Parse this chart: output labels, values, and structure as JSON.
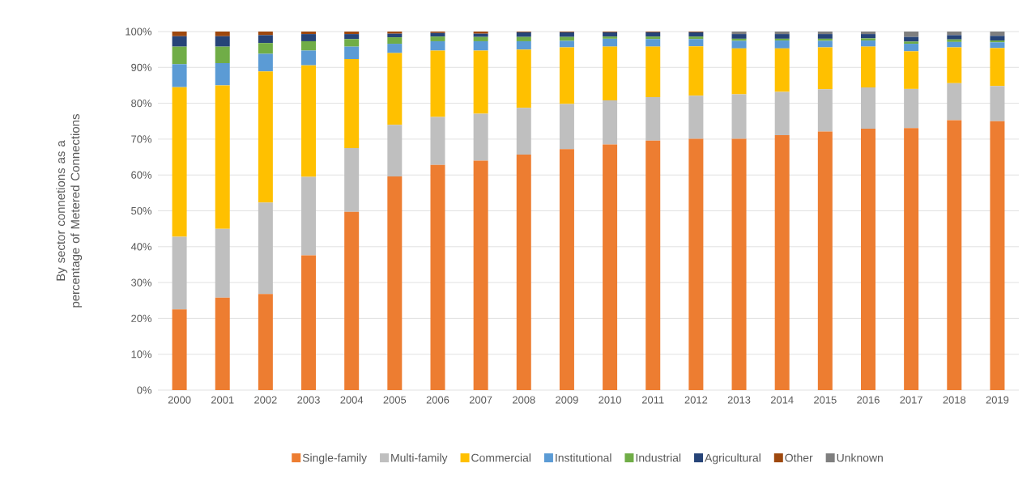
{
  "chart_data": {
    "type": "bar",
    "stacked": true,
    "ylabel": "By sector connetions as a percentage of Metered Connections",
    "categories": [
      "2000",
      "2001",
      "2002",
      "2003",
      "2004",
      "2005",
      "2006",
      "2007",
      "2008",
      "2009",
      "2010",
      "2011",
      "2012",
      "2013",
      "2014",
      "2015",
      "2016",
      "2017",
      "2018",
      "2019"
    ],
    "series": [
      {
        "name": "Single-family",
        "color": "#ed7d31",
        "values": [
          22.5,
          25.8,
          26.8,
          37.6,
          49.7,
          59.6,
          62.8,
          64.0,
          65.7,
          67.2,
          68.5,
          69.6,
          70.1,
          70.1,
          71.1,
          72.1,
          72.9,
          73.1,
          75.3,
          75.0
        ]
      },
      {
        "name": "Multi-family",
        "color": "#bfbfbf",
        "values": [
          20.3,
          19.2,
          25.5,
          21.9,
          17.8,
          14.4,
          13.4,
          13.1,
          13.0,
          12.6,
          12.3,
          12.1,
          12.0,
          12.4,
          12.1,
          11.8,
          11.5,
          10.9,
          10.3,
          9.8
        ]
      },
      {
        "name": "Commercial",
        "color": "#ffc000",
        "values": [
          41.7,
          40.0,
          36.6,
          31.1,
          24.8,
          20.0,
          18.5,
          17.6,
          16.3,
          15.8,
          15.0,
          14.1,
          13.8,
          12.8,
          12.1,
          11.7,
          11.4,
          10.5,
          10.0,
          10.6
        ]
      },
      {
        "name": "Institutional",
        "color": "#5b9bd5",
        "values": [
          6.4,
          6.2,
          4.9,
          4.1,
          3.5,
          2.6,
          2.6,
          2.6,
          2.3,
          1.8,
          2.2,
          2.1,
          2.0,
          2.1,
          2.2,
          1.8,
          1.7,
          2.1,
          1.5,
          1.6
        ]
      },
      {
        "name": "Industrial",
        "color": "#70ad47",
        "values": [
          4.9,
          4.6,
          3.0,
          2.6,
          2.1,
          1.8,
          1.3,
          1.2,
          1.2,
          1.1,
          0.6,
          0.7,
          0.7,
          0.6,
          0.5,
          0.6,
          0.6,
          0.6,
          0.7,
          0.5
        ]
      },
      {
        "name": "Agricultural",
        "color": "#264478",
        "values": [
          2.9,
          2.9,
          2.2,
          2.0,
          1.4,
          1.0,
          1.0,
          0.9,
          1.3,
          1.3,
          1.2,
          1.2,
          1.2,
          1.3,
          1.3,
          1.3,
          1.2,
          1.3,
          1.2,
          1.3
        ]
      },
      {
        "name": "Other",
        "color": "#9e480e",
        "values": [
          1.3,
          1.3,
          1.0,
          0.7,
          0.7,
          0.6,
          0.4,
          0.6,
          0.2,
          0.2,
          0.2,
          0.2,
          0.2,
          null,
          null,
          null,
          null,
          null,
          null,
          null
        ]
      },
      {
        "name": "Unknown",
        "color": "#7f7f7f",
        "values": [
          null,
          null,
          null,
          null,
          null,
          null,
          null,
          null,
          null,
          null,
          null,
          null,
          null,
          0.7,
          0.7,
          0.7,
          0.7,
          1.5,
          1.0,
          1.2
        ]
      }
    ],
    "ylim": [
      0,
      100
    ],
    "yticks": [
      {
        "value": 0,
        "label": "0%"
      },
      {
        "value": 10,
        "label": "10%"
      },
      {
        "value": 20,
        "label": "20%"
      },
      {
        "value": 30,
        "label": "30%"
      },
      {
        "value": 40,
        "label": "40%"
      },
      {
        "value": 50,
        "label": "50%"
      },
      {
        "value": 60,
        "label": "60%"
      },
      {
        "value": 70,
        "label": "70%"
      },
      {
        "value": 80,
        "label": "80%"
      },
      {
        "value": 90,
        "label": "90%"
      },
      {
        "value": 100,
        "label": "100%"
      }
    ],
    "grid": "y",
    "legend": "bottom"
  }
}
